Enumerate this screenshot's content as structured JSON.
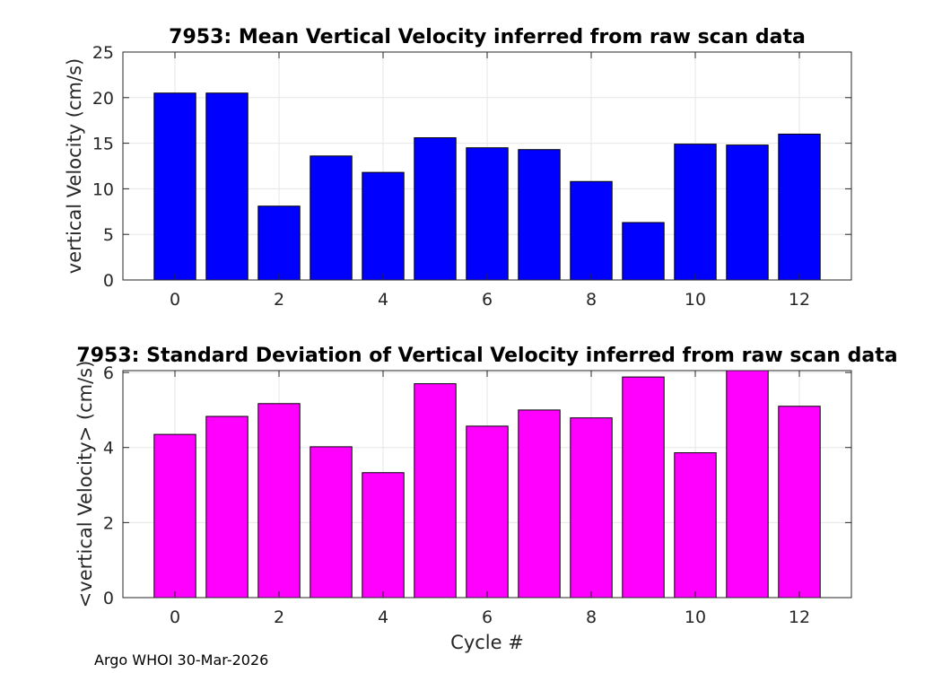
{
  "chart_data": [
    {
      "type": "bar",
      "title": "7953: Mean Vertical Velocity inferred from raw scan data",
      "xlabel": "",
      "ylabel": "vertical Velocity (cm/s)",
      "categories": [
        0,
        1,
        2,
        3,
        4,
        5,
        6,
        7,
        8,
        9,
        10,
        11,
        12
      ],
      "values": [
        20.5,
        20.5,
        8.1,
        13.6,
        11.8,
        15.6,
        14.5,
        14.3,
        10.8,
        6.3,
        14.9,
        14.8,
        16.0
      ],
      "xlim": [
        -1,
        13
      ],
      "ylim": [
        0,
        25
      ],
      "xticks": [
        0,
        2,
        4,
        6,
        8,
        10,
        12
      ],
      "yticks": [
        0,
        5,
        10,
        15,
        20,
        25
      ],
      "bar_color": "#0000ff",
      "grid": true
    },
    {
      "type": "bar",
      "title": "7953: Standard Deviation of Vertical Velocity inferred from raw scan data",
      "xlabel": "Cycle #",
      "ylabel": "<vertical Velocity> (cm/s)",
      "categories": [
        0,
        1,
        2,
        3,
        4,
        5,
        6,
        7,
        8,
        9,
        10,
        11,
        12
      ],
      "values": [
        4.35,
        4.83,
        5.17,
        4.02,
        3.33,
        5.7,
        4.57,
        5.0,
        4.79,
        5.88,
        3.86,
        6.05,
        5.1
      ],
      "xlim": [
        -1,
        13
      ],
      "ylim": [
        0,
        6.05
      ],
      "xticks": [
        0,
        2,
        4,
        6,
        8,
        10,
        12
      ],
      "yticks": [
        0,
        2,
        4,
        6
      ],
      "bar_color": "#ff00ff",
      "grid": true
    }
  ],
  "footer": {
    "note": "Argo WHOI 30-Mar-2026"
  }
}
